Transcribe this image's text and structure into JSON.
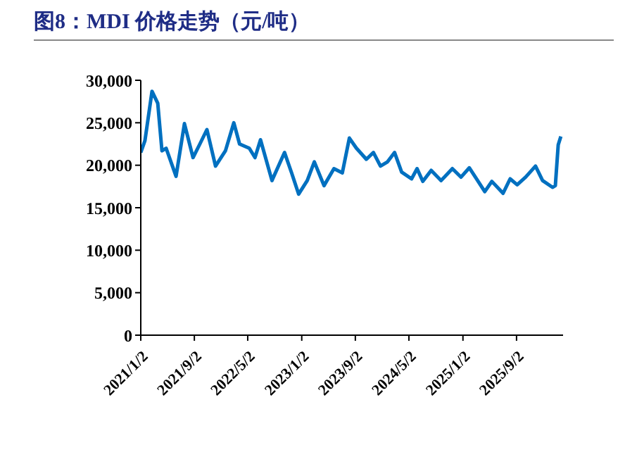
{
  "chart_data": {
    "type": "line",
    "title": "图8：MDI 价格走势（元/吨）",
    "x": [
      "2021-01-02",
      "2021-01-21",
      "2021-02-22",
      "2021-03-20",
      "2021-04-08",
      "2021-04-27",
      "2021-06-11",
      "2021-07-19",
      "2021-08-27",
      "2021-09-27",
      "2021-10-29",
      "2021-12-07",
      "2022-01-21",
      "2022-02-28",
      "2022-03-26",
      "2022-05-09",
      "2022-06-04",
      "2022-06-29",
      "2022-08-20",
      "2022-10-16",
      "2022-11-17",
      "2022-12-19",
      "2023-01-27",
      "2023-02-28",
      "2023-04-13",
      "2023-05-28",
      "2023-07-05",
      "2023-08-06",
      "2023-09-07",
      "2023-10-22",
      "2023-11-23",
      "2023-12-25",
      "2024-01-26",
      "2024-02-27",
      "2024-03-30",
      "2024-05-14",
      "2024-06-08",
      "2024-07-04",
      "2024-08-11",
      "2024-09-25",
      "2024-11-15",
      "2024-12-24",
      "2025-01-31",
      "2025-04-11",
      "2025-05-13",
      "2025-07-03",
      "2025-08-04",
      "2025-09-05",
      "2025-10-13",
      "2025-11-27",
      "2025-12-29",
      "2026-02-12",
      "2026-02-25",
      "2026-03-10",
      "2026-03-22"
    ],
    "series": [
      {
        "color": "#0070c0",
        "values": [
          21500,
          22900,
          28700,
          27300,
          21700,
          22000,
          18700,
          24900,
          20900,
          22500,
          24200,
          19900,
          21700,
          25000,
          22500,
          22000,
          20900,
          23000,
          18200,
          21500,
          19100,
          16600,
          18200,
          20400,
          17600,
          19600,
          19100,
          23200,
          22000,
          20700,
          21500,
          19900,
          20400,
          21500,
          19200,
          18400,
          19600,
          18100,
          19400,
          18200,
          19600,
          18600,
          19700,
          16900,
          18100,
          16700,
          18400,
          17700,
          18600,
          19900,
          18200,
          17400,
          17600,
          22400,
          23400
        ]
      }
    ],
    "xlim": [
      "2021-01-02",
      "2026-04-01"
    ],
    "xticks": [
      {
        "value": "2021-01-02",
        "label": "2021/1/2"
      },
      {
        "value": "2021-09-02",
        "label": "2021/9/2"
      },
      {
        "value": "2022-05-02",
        "label": "2022/5/2"
      },
      {
        "value": "2023-01-02",
        "label": "2023/1/2"
      },
      {
        "value": "2023-09-02",
        "label": "2023/9/2"
      },
      {
        "value": "2024-05-02",
        "label": "2024/5/2"
      },
      {
        "value": "2025-01-02",
        "label": "2025/1/2"
      },
      {
        "value": "2025-09-02",
        "label": "2025/9/2"
      }
    ],
    "ylim": [
      0,
      30000
    ],
    "yticks": [
      {
        "value": 0,
        "label": "0"
      },
      {
        "value": 5000,
        "label": "5,000"
      },
      {
        "value": 10000,
        "label": "10,000"
      },
      {
        "value": 15000,
        "label": "15,000"
      },
      {
        "value": 20000,
        "label": "20,000"
      },
      {
        "value": 25000,
        "label": "25,000"
      },
      {
        "value": 30000,
        "label": "30,000"
      }
    ],
    "grid": false,
    "legend": false,
    "marker": "none",
    "line_style": "solid"
  }
}
